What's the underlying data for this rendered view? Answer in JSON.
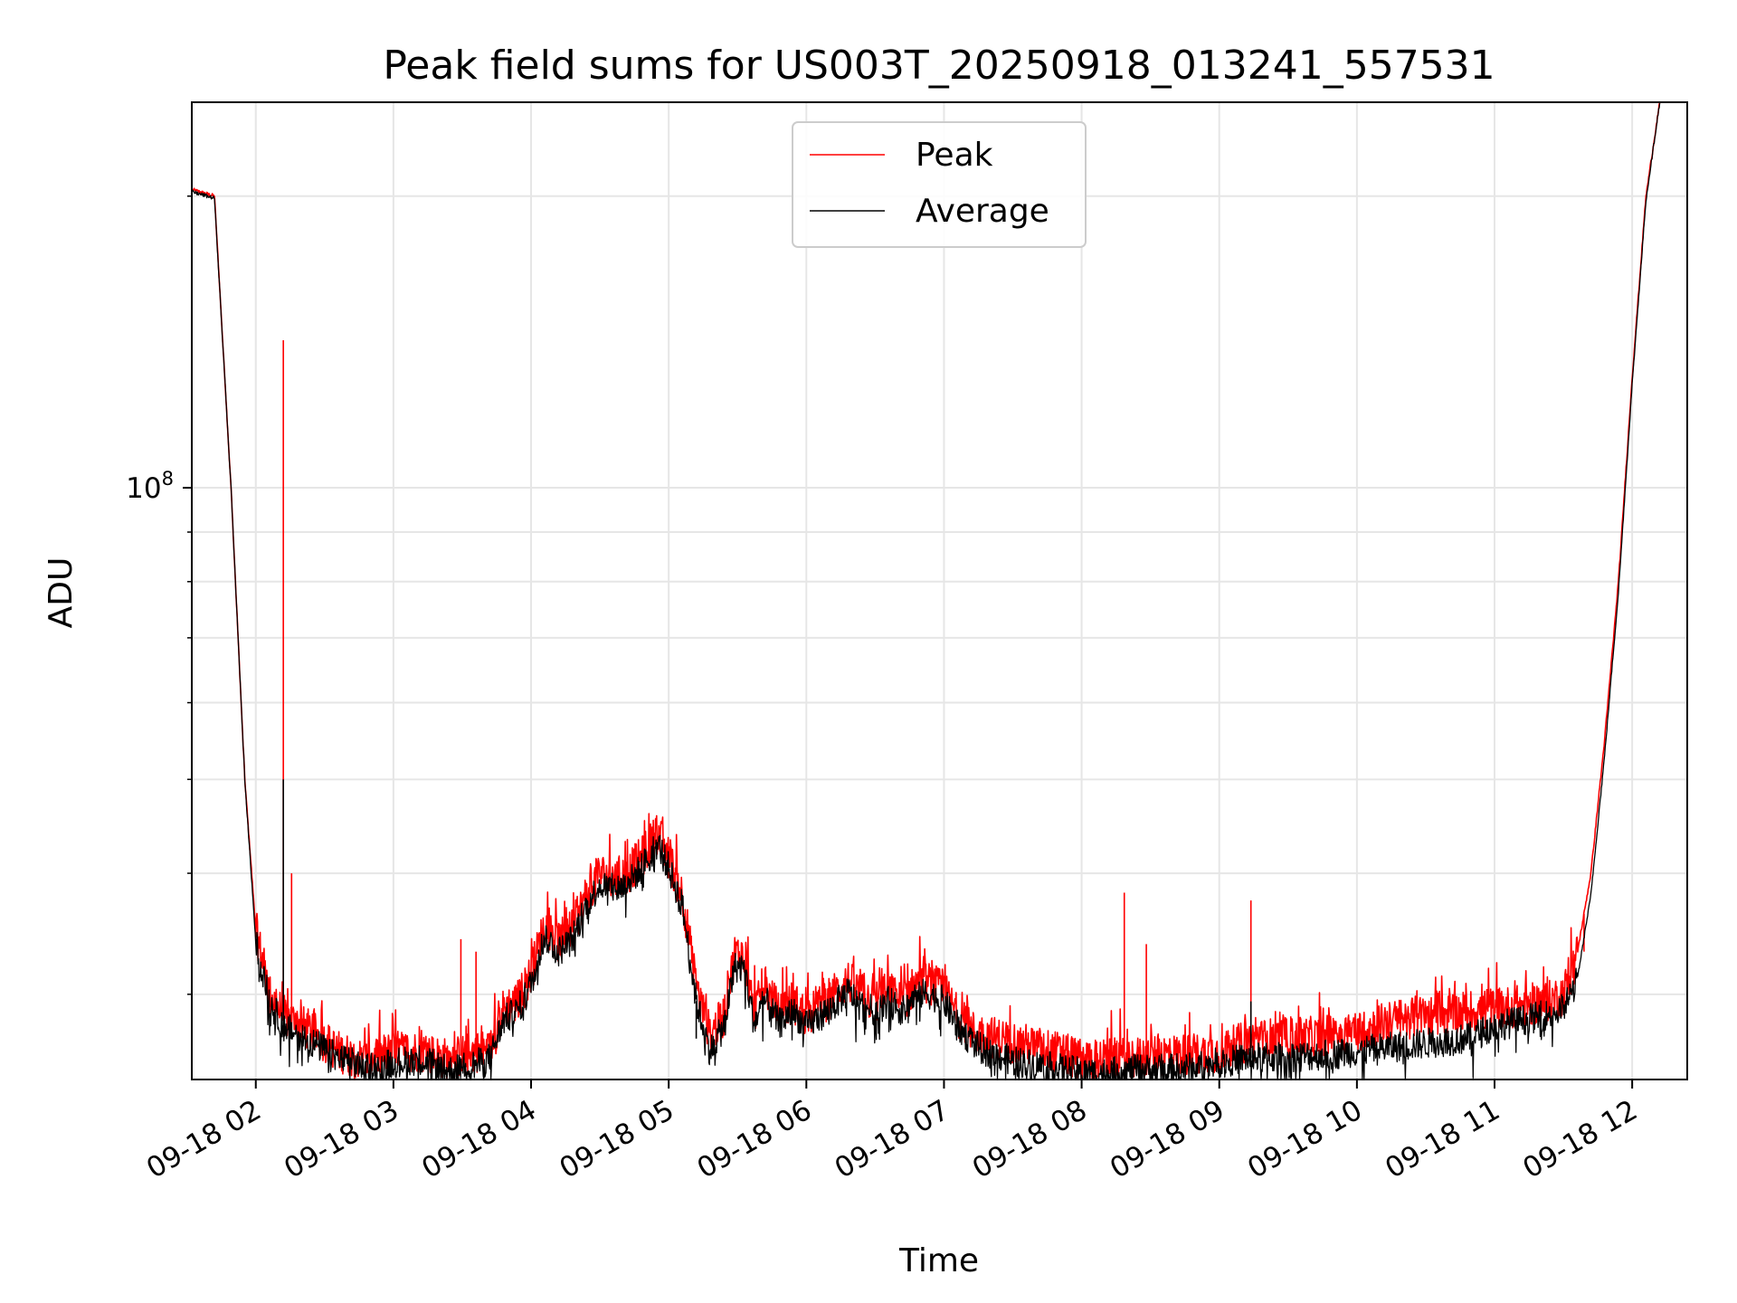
{
  "chart_data": {
    "type": "line",
    "title": "Peak field sums for US003T_20250918_013241_557531",
    "xlabel": "Time",
    "ylabel": "ADU",
    "yscale": "log",
    "grid": true,
    "legend_position": "upper-center",
    "x_tick_labels": [
      "09-18 02",
      "09-18 03",
      "09-18 04",
      "09-18 05",
      "09-18 06",
      "09-18 07",
      "09-18 08",
      "09-18 09",
      "09-18 10",
      "09-18 11",
      "09-18 12"
    ],
    "x_tick_hours": [
      2,
      3,
      4,
      5,
      6,
      7,
      8,
      9,
      10,
      11,
      12
    ],
    "xlim_hours": [
      1.535,
      12.4
    ],
    "ylim": [
      24500000,
      250000000
    ],
    "y_tick_major": {
      "value": 100000000,
      "base": "10",
      "exponent": "8"
    },
    "y_tick_minor": [
      30000000,
      40000000,
      50000000,
      60000000,
      70000000,
      80000000,
      90000000,
      200000000
    ],
    "series": [
      {
        "name": "Peak",
        "color": "#ff0000",
        "points": [
          [
            1.54,
            203000000.0
          ],
          [
            1.7,
            200000000.0
          ],
          [
            1.82,
            100000000.0
          ],
          [
            1.92,
            50000000.0
          ],
          [
            2.0,
            35000000.0
          ],
          [
            2.1,
            30000000.0
          ],
          [
            2.2,
            28500000.0
          ],
          [
            2.4,
            27500000.0
          ],
          [
            2.6,
            26200000.0
          ],
          [
            2.8,
            25600000.0
          ],
          [
            3.0,
            26200000.0
          ],
          [
            3.2,
            26200000.0
          ],
          [
            3.4,
            25700000.0
          ],
          [
            3.6,
            26200000.0
          ],
          [
            3.7,
            26200000.0
          ],
          [
            3.8,
            29000000.0
          ],
          [
            3.9,
            29500000.0
          ],
          [
            4.0,
            31500000.0
          ],
          [
            4.1,
            35500000.0
          ],
          [
            4.2,
            34000000.0
          ],
          [
            4.3,
            35000000.0
          ],
          [
            4.4,
            38000000.0
          ],
          [
            4.5,
            40000000.0
          ],
          [
            4.6,
            39500000.0
          ],
          [
            4.7,
            40000000.0
          ],
          [
            4.8,
            41500000.0
          ],
          [
            4.92,
            44000000.0
          ],
          [
            5.0,
            41500000.0
          ],
          [
            5.1,
            38000000.0
          ],
          [
            5.2,
            30500000.0
          ],
          [
            5.3,
            27200000.0
          ],
          [
            5.4,
            28500000.0
          ],
          [
            5.48,
            33000000.0
          ],
          [
            5.55,
            33000000.0
          ],
          [
            5.62,
            28800000.0
          ],
          [
            5.7,
            30500000.0
          ],
          [
            5.8,
            28800000.0
          ],
          [
            5.9,
            29500000.0
          ],
          [
            6.0,
            28500000.0
          ],
          [
            6.1,
            29200000.0
          ],
          [
            6.2,
            30000000.0
          ],
          [
            6.3,
            31000000.0
          ],
          [
            6.4,
            30000000.0
          ],
          [
            6.5,
            29500000.0
          ],
          [
            6.6,
            30200000.0
          ],
          [
            6.7,
            29500000.0
          ],
          [
            6.8,
            30800000.0
          ],
          [
            6.9,
            30800000.0
          ],
          [
            7.0,
            30200000.0
          ],
          [
            7.1,
            28500000.0
          ],
          [
            7.2,
            27500000.0
          ],
          [
            7.3,
            27200000.0
          ],
          [
            7.5,
            26800000.0
          ],
          [
            7.8,
            26200000.0
          ],
          [
            8.0,
            25700000.0
          ],
          [
            8.2,
            25700000.0
          ],
          [
            8.4,
            25800000.0
          ],
          [
            8.6,
            26000000.0
          ],
          [
            8.8,
            26000000.0
          ],
          [
            9.0,
            26200000.0
          ],
          [
            9.2,
            26800000.0
          ],
          [
            9.4,
            27000000.0
          ],
          [
            9.6,
            27000000.0
          ],
          [
            9.8,
            27200000.0
          ],
          [
            10.0,
            27500000.0
          ],
          [
            10.2,
            28000000.0
          ],
          [
            10.4,
            28400000.0
          ],
          [
            10.6,
            28600000.0
          ],
          [
            10.8,
            28800000.0
          ],
          [
            11.0,
            29000000.0
          ],
          [
            11.2,
            29200000.0
          ],
          [
            11.4,
            29500000.0
          ],
          [
            11.5,
            30000000.0
          ],
          [
            11.6,
            33000000.0
          ],
          [
            11.7,
            40000000.0
          ],
          [
            11.8,
            55000000.0
          ],
          [
            11.9,
            80000000.0
          ],
          [
            12.0,
            130000000.0
          ],
          [
            12.1,
            200000000.0
          ],
          [
            12.2,
            250000000.0
          ]
        ],
        "spikes": [
          [
            2.2,
            142000000.0
          ],
          [
            2.26,
            40000000.0
          ],
          [
            3.49,
            34200000.0
          ],
          [
            3.6,
            33200000.0
          ],
          [
            8.31,
            38200000.0
          ],
          [
            8.47,
            33800000.0
          ],
          [
            9.23,
            37500000.0
          ],
          [
            11.65,
            33200000.0
          ]
        ]
      },
      {
        "name": "Average",
        "color": "#000000",
        "points": [
          [
            1.54,
            202000000.0
          ],
          [
            1.7,
            199000000.0
          ],
          [
            1.82,
            100000000.0
          ],
          [
            1.92,
            50000000.0
          ],
          [
            2.0,
            34000000.0
          ],
          [
            2.1,
            29500000.0
          ],
          [
            2.2,
            27800000.0
          ],
          [
            2.4,
            26800000.0
          ],
          [
            2.6,
            25800000.0
          ],
          [
            2.8,
            25200000.0
          ],
          [
            3.0,
            25500000.0
          ],
          [
            3.2,
            25700000.0
          ],
          [
            3.4,
            25000000.0
          ],
          [
            3.6,
            25400000.0
          ],
          [
            3.7,
            25800000.0
          ],
          [
            3.8,
            28200000.0
          ],
          [
            3.9,
            28800000.0
          ],
          [
            4.0,
            30800000.0
          ],
          [
            4.1,
            34500000.0
          ],
          [
            4.2,
            33200000.0
          ],
          [
            4.3,
            34200000.0
          ],
          [
            4.4,
            37000000.0
          ],
          [
            4.5,
            39000000.0
          ],
          [
            4.6,
            38500000.0
          ],
          [
            4.7,
            39000000.0
          ],
          [
            4.8,
            40500000.0
          ],
          [
            4.92,
            43000000.0
          ],
          [
            5.0,
            40500000.0
          ],
          [
            5.1,
            37000000.0
          ],
          [
            5.2,
            29500000.0
          ],
          [
            5.3,
            26200000.0
          ],
          [
            5.4,
            27800000.0
          ],
          [
            5.48,
            32000000.0
          ],
          [
            5.55,
            32000000.0
          ],
          [
            5.62,
            28000000.0
          ],
          [
            5.7,
            29600000.0
          ],
          [
            5.8,
            28000000.0
          ],
          [
            5.9,
            28800000.0
          ],
          [
            6.0,
            27800000.0
          ],
          [
            6.1,
            28500000.0
          ],
          [
            6.2,
            29200000.0
          ],
          [
            6.3,
            30200000.0
          ],
          [
            6.4,
            29200000.0
          ],
          [
            6.5,
            28800000.0
          ],
          [
            6.6,
            29500000.0
          ],
          [
            6.7,
            28800000.0
          ],
          [
            6.8,
            30000000.0
          ],
          [
            6.9,
            30000000.0
          ],
          [
            7.0,
            29500000.0
          ],
          [
            7.1,
            27800000.0
          ],
          [
            7.2,
            26800000.0
          ],
          [
            7.3,
            26200000.0
          ],
          [
            7.5,
            25600000.0
          ],
          [
            7.8,
            25200000.0
          ],
          [
            8.0,
            24900000.0
          ],
          [
            8.2,
            24900000.0
          ],
          [
            8.4,
            25100000.0
          ],
          [
            8.6,
            25100000.0
          ],
          [
            8.8,
            25200000.0
          ],
          [
            9.0,
            25500000.0
          ],
          [
            9.2,
            25800000.0
          ],
          [
            9.4,
            25800000.0
          ],
          [
            9.6,
            25900000.0
          ],
          [
            9.8,
            26000000.0
          ],
          [
            10.0,
            26200000.0
          ],
          [
            10.2,
            26400000.0
          ],
          [
            10.4,
            26600000.0
          ],
          [
            10.6,
            26800000.0
          ],
          [
            10.8,
            27000000.0
          ],
          [
            11.0,
            27800000.0
          ],
          [
            11.2,
            28200000.0
          ],
          [
            11.4,
            28600000.0
          ],
          [
            11.5,
            29000000.0
          ],
          [
            11.6,
            31000000.0
          ],
          [
            11.7,
            38000000.0
          ],
          [
            11.8,
            53000000.0
          ],
          [
            11.9,
            78000000.0
          ],
          [
            12.0,
            128000000.0
          ],
          [
            12.1,
            198000000.0
          ],
          [
            12.2,
            250000000.0
          ]
        ],
        "spikes": [
          [
            2.2,
            50000000.0
          ],
          [
            5.2,
            27000000.0
          ],
          [
            9.23,
            29500000.0
          ]
        ]
      }
    ]
  }
}
